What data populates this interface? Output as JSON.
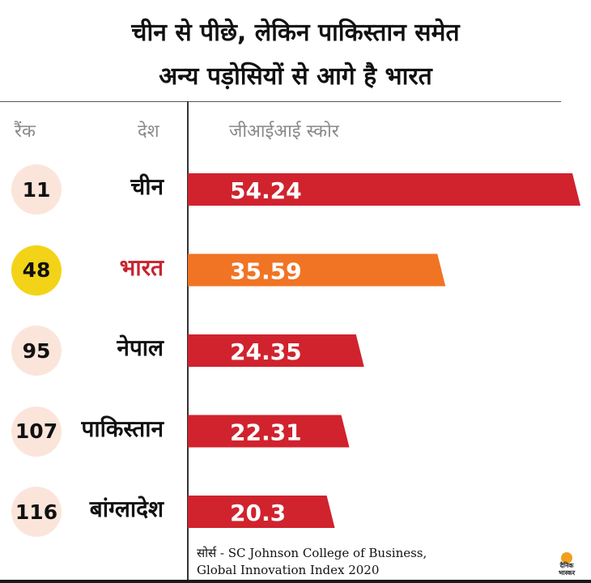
{
  "header": {
    "title_line1": "चीन से पीछे, लेकिन पाकिस्तान समेत",
    "title_line2": "अन्य पड़ोसियों से आगे है भारत"
  },
  "columns": {
    "rank": "रैंक",
    "country": "देश",
    "score": "जीआईआई स्कोर"
  },
  "colors": {
    "bar_default": "#d0232e",
    "bar_highlight": "#f07424",
    "rank_default": "#fbe5db",
    "rank_highlight": "#f3d317",
    "country_highlight": "#c8242e"
  },
  "chart_data": {
    "type": "bar",
    "orientation": "horizontal",
    "title": "चीन से पीछे, लेकिन पाकिस्तान समेत अन्य पड़ोसियों से आगे है भारत",
    "xlabel": "जीआईआई स्कोर",
    "categories": [
      "चीन",
      "भारत",
      "नेपाल",
      "पाकिस्तान",
      "बांग्लादेश"
    ],
    "ranks": [
      "11",
      "48",
      "95",
      "107",
      "116"
    ],
    "values": [
      54.24,
      35.59,
      24.35,
      22.31,
      20.3
    ],
    "value_labels": [
      "54.24",
      "35.59",
      "24.35",
      "22.31",
      "20.3"
    ],
    "highlight": "भारत",
    "grid": false,
    "legend": "none"
  },
  "source": {
    "line1": "सोर्स - SC Johnson College of Business,",
    "line2": "Global Innovation Index 2020"
  },
  "logo": {
    "line1": "दैनिक",
    "line2": "भास्कर"
  }
}
